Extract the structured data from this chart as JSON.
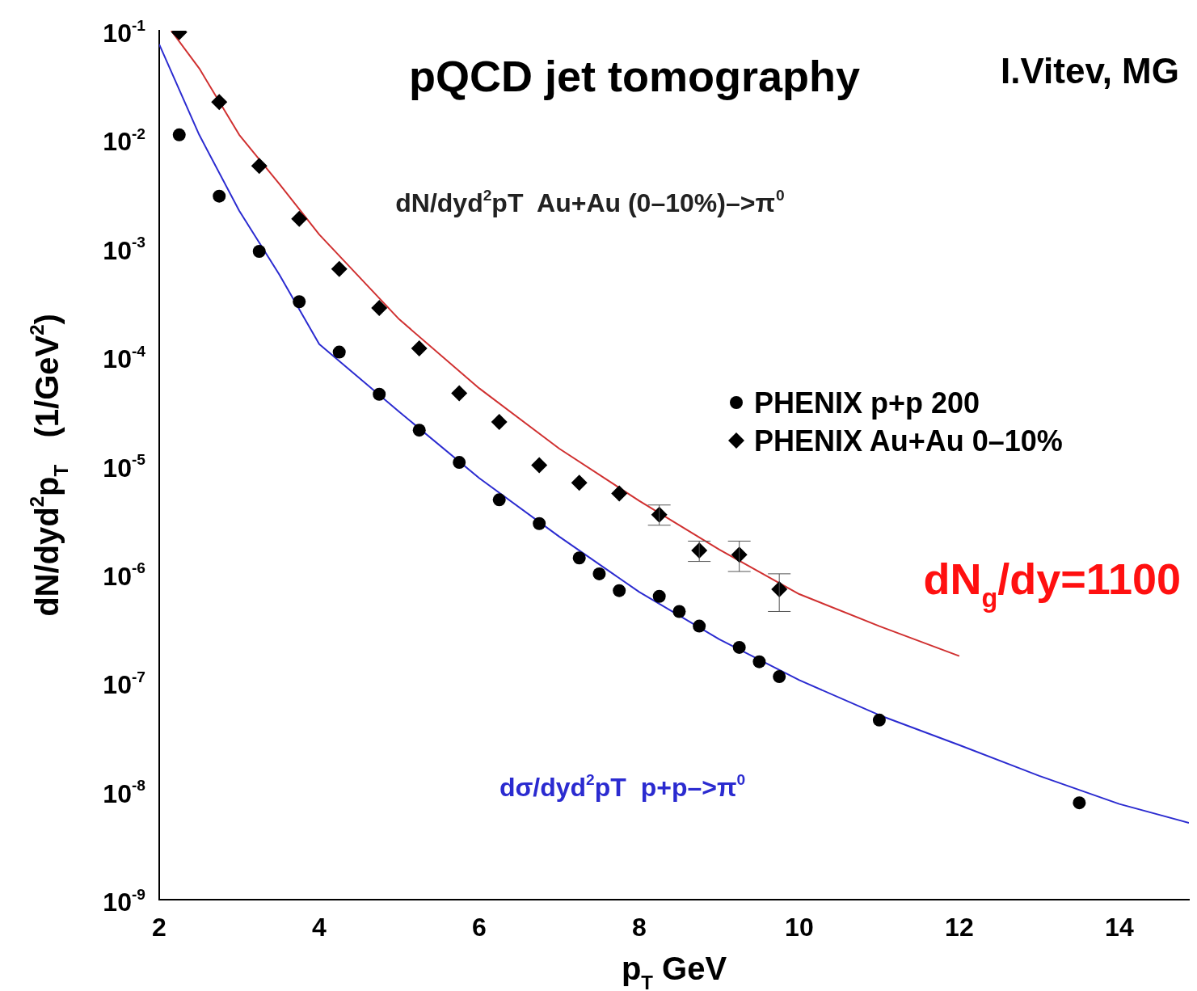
{
  "chart_data": {
    "type": "scatter",
    "title": "pQCD jet tomography",
    "xlabel": "p$_{T}$ GeV",
    "ylabel": "dN/dyd$^{2}$p$_{T}$   (1/GeV$^{2}$)",
    "xlim": [
      2,
      14.87
    ],
    "xticks": [
      2,
      4,
      6,
      8,
      10,
      12,
      14
    ],
    "ylim": [
      1e-09,
      0.1
    ],
    "yticks": [
      {
        "value": 1e-09,
        "label": "10$^{-9}$"
      },
      {
        "value": 1e-08,
        "label": "10$^{-8}$"
      },
      {
        "value": 1e-07,
        "label": "10$^{-7}$"
      },
      {
        "value": 1e-06,
        "label": "10$^{-6}$"
      },
      {
        "value": 1e-05,
        "label": "10$^{-5}$"
      },
      {
        "value": 0.0001,
        "label": "10$^{-4}$"
      },
      {
        "value": 0.001,
        "label": "10$^{-3}$"
      },
      {
        "value": 0.01,
        "label": "10$^{-2}$"
      },
      {
        "value": 0.1,
        "label": "10$^{-1}$"
      }
    ],
    "log": "y",
    "legend": "right",
    "grid": false,
    "annotations": [
      "I.Vitev, MG",
      "dN/dyd$^{2}$pT  Au+Au (0–10%)–>π$^{0}$",
      "dσ/dyd$^{2}$pT  p+p–>π$^{0}$",
      "dN$_{g}$/dy=1100"
    ],
    "series": [
      {
        "name": "PHENIX p+p 200",
        "marker": "circle",
        "color": "#000000",
        "x": [
          2.25,
          2.75,
          3.25,
          3.75,
          4.25,
          4.75,
          5.25,
          5.75,
          6.25,
          6.75,
          7.25,
          7.5,
          7.75,
          8.25,
          8.5,
          8.75,
          9.25,
          9.5,
          9.75,
          11.0,
          13.5
        ],
        "values": [
          0.011,
          0.003,
          0.00093,
          0.00032,
          0.00011,
          4.5e-05,
          2.1e-05,
          1.06e-05,
          4.8e-06,
          2.9e-06,
          1.4e-06,
          1e-06,
          7e-07,
          6.2e-07,
          4.5e-07,
          3.3e-07,
          2.1e-07,
          1.55e-07,
          1.13e-07,
          4.5e-08,
          7.8e-09
        ]
      },
      {
        "name": "PHENIX Au+Au 0–10%",
        "marker": "diamond",
        "color": "#000000",
        "x": [
          2.25,
          2.75,
          3.25,
          3.75,
          4.25,
          4.75,
          5.25,
          5.75,
          6.25,
          6.75,
          7.25,
          7.75,
          8.25,
          8.75,
          9.25,
          9.75
        ],
        "values": [
          0.097,
          0.022,
          0.0057,
          0.00185,
          0.00064,
          0.00028,
          0.000119,
          4.6e-05,
          2.5e-05,
          1e-05,
          6.9e-06,
          5.5e-06,
          3.5e-06,
          1.64e-06,
          1.5e-06,
          7.2e-07
        ],
        "errors": [
          null,
          null,
          null,
          null,
          null,
          null,
          null,
          null,
          null,
          null,
          null,
          null,
          [
            2.8e-06,
            4.3e-06
          ],
          [
            1.3e-06,
            2e-06
          ],
          [
            1.05e-06,
            2e-06
          ],
          [
            4.5e-07,
            1e-06
          ]
        ]
      },
      {
        "type": "line",
        "marker": "none",
        "color": "#2b2bd0",
        "x": [
          2.0,
          2.5,
          3.0,
          3.5,
          4.0,
          5.0,
          6.0,
          7.0,
          8.0,
          9.0,
          10.0,
          11.0,
          12.0,
          13.0,
          14.0,
          14.87
        ],
        "values": [
          0.075,
          0.011,
          0.0022,
          0.00057,
          0.00013,
          3.1e-05,
          7.6e-06,
          2.2e-06,
          6.8e-07,
          2.5e-07,
          1.05e-07,
          5e-08,
          2.65e-08,
          1.38e-08,
          7.6e-09,
          5.1e-09
        ]
      },
      {
        "type": "line",
        "marker": "none",
        "color": "#d03030",
        "x": [
          2.15,
          2.5,
          3.0,
          3.5,
          4.0,
          5.0,
          6.0,
          7.0,
          8.0,
          9.0,
          10.0,
          11.0,
          12.0
        ],
        "values": [
          0.1,
          0.045,
          0.011,
          0.0039,
          0.00133,
          0.00022,
          5.1e-05,
          1.42e-05,
          4.7e-06,
          1.67e-06,
          6.5e-07,
          3.3e-07,
          1.75e-07
        ]
      }
    ]
  }
}
